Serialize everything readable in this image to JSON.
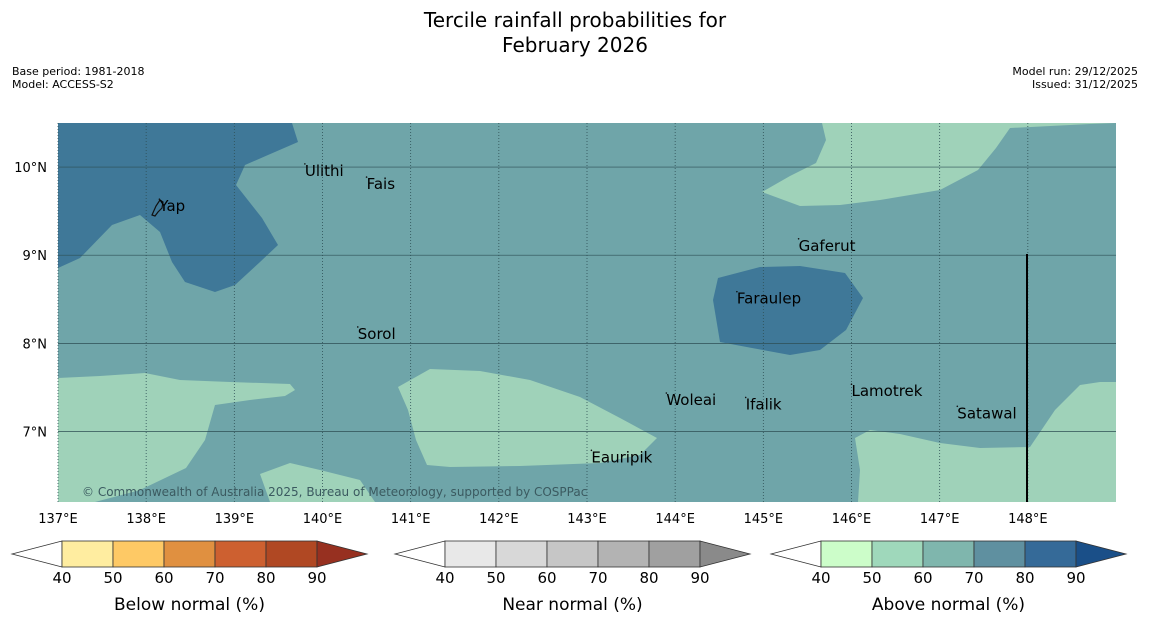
{
  "title_line1": "Tercile rainfall probabilities for",
  "title_line2": "February 2026",
  "meta_left": {
    "base_period": "Base period: 1981-2018",
    "model": "Model: ACCESS-S2"
  },
  "meta_right": {
    "model_run": "Model run: 29/12/2025",
    "issued": "Issued: 31/12/2025"
  },
  "map": {
    "lon_range": [
      137,
      149
    ],
    "lat_range": [
      6.2,
      10.5
    ],
    "lon_ticks": [
      "137°E",
      "138°E",
      "139°E",
      "140°E",
      "141°E",
      "142°E",
      "143°E",
      "144°E",
      "145°E",
      "146°E",
      "147°E",
      "148°E"
    ],
    "lat_ticks": [
      "10°N",
      "9°N",
      "8°N",
      "7°N"
    ],
    "copyright": "© Commonwealth of Australia 2025, Bureau of Meteorology, supported by COSPPac",
    "places": [
      {
        "name": "Ulithi",
        "lon": 139.8,
        "lat": 9.9
      },
      {
        "name": "Fais",
        "lon": 140.5,
        "lat": 9.75
      },
      {
        "name": "Yap",
        "lon": 138.15,
        "lat": 9.5
      },
      {
        "name": "Gaferut",
        "lon": 145.4,
        "lat": 9.05
      },
      {
        "name": "Faraulep",
        "lon": 144.7,
        "lat": 8.45
      },
      {
        "name": "Sorol",
        "lon": 140.4,
        "lat": 8.05
      },
      {
        "name": "Lamotrek",
        "lon": 146.0,
        "lat": 7.4
      },
      {
        "name": "Woleai",
        "lon": 143.9,
        "lat": 7.3
      },
      {
        "name": "Ifalik",
        "lon": 144.8,
        "lat": 7.25
      },
      {
        "name": "Satawal",
        "lon": 147.2,
        "lat": 7.15
      },
      {
        "name": "Eauripik",
        "lon": 143.05,
        "lat": 6.65
      }
    ],
    "colors": {
      "above_70": "#6fa5a9",
      "above_80": "#3f7898",
      "above_60": "#9fd2b9"
    }
  },
  "colorbars": [
    {
      "label": "Below normal (%)",
      "ticks": [
        "40",
        "50",
        "60",
        "70",
        "80",
        "90"
      ],
      "colors": [
        "#ffffff",
        "#ffeda0",
        "#fec965",
        "#e09040",
        "#cd6030",
        "#b04823",
        "#973020"
      ]
    },
    {
      "label": "Near normal (%)",
      "ticks": [
        "40",
        "50",
        "60",
        "70",
        "80",
        "90"
      ],
      "colors": [
        "#ffffff",
        "#e8e8e8",
        "#d8d8d8",
        "#c6c6c6",
        "#b3b3b3",
        "#a0a0a0",
        "#8a8a8a"
      ]
    },
    {
      "label": "Above normal (%)",
      "ticks": [
        "40",
        "50",
        "60",
        "70",
        "80",
        "90"
      ],
      "colors": [
        "#ffffff",
        "#ccfdc9",
        "#9fd8bb",
        "#7fb6ad",
        "#5f90a0",
        "#356a98",
        "#1a4f88"
      ]
    }
  ]
}
